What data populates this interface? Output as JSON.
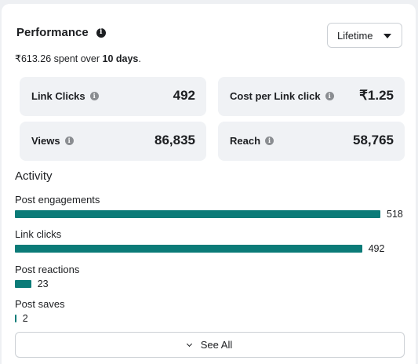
{
  "performance": {
    "title": "Performance",
    "info_icon": "info-icon",
    "period_select": {
      "selected": "Lifetime",
      "icon": "caret-down-icon"
    },
    "summary": {
      "amount": "₹613.26",
      "middle": " spent over ",
      "duration": "10 days",
      "end": "."
    }
  },
  "metrics": [
    {
      "label": "Link Clicks",
      "value": "492"
    },
    {
      "label": "Cost per Link click",
      "value": "₹1.25"
    },
    {
      "label": "Views",
      "value": "86,835"
    },
    {
      "label": "Reach",
      "value": "58,765"
    }
  ],
  "activity": {
    "title": "Activity",
    "items": [
      {
        "label": "Post engagements",
        "value": 518,
        "display": "518"
      },
      {
        "label": "Link clicks",
        "value": 492,
        "display": "492"
      },
      {
        "label": "Post reactions",
        "value": 23,
        "display": "23"
      },
      {
        "label": "Post saves",
        "value": 2,
        "display": "2"
      }
    ],
    "bar_color": "#0b7b78"
  },
  "see_all": {
    "label": "See All",
    "icon": "chevron-down-icon"
  }
}
